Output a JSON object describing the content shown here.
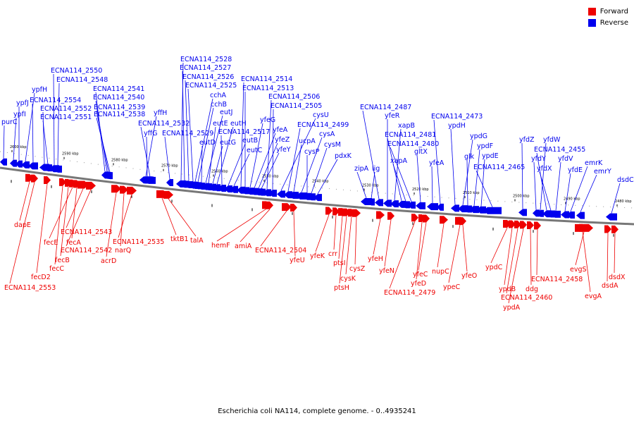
{
  "legend": {
    "forward_label": "Forward",
    "reverse_label": "Reverse",
    "forward_color": "#ee0000",
    "reverse_color": "#0000ee"
  },
  "caption": "Escherichia coli NA114, complete genome. - 0..4935241",
  "colors": {
    "forward": "#ee0000",
    "reverse": "#0000ee",
    "backbone": "#777777"
  },
  "ticks": [
    "2600 kbp",
    "2590 kbp",
    "2580 kbp",
    "2570 kbp",
    "2560 kbp",
    "2550 kbp",
    "2540 kbp",
    "2530 kbp",
    "2520 kbp",
    "2510 kbp",
    "2500 kbp",
    "2490 kbp",
    "2480 kbp"
  ],
  "reverse_genes": [
    "purC",
    "ypfI",
    "ypfJ",
    "ypfH",
    "ECNA114_2554",
    "ECNA114_2552",
    "ECNA114_2551",
    "ECNA114_2550",
    "ECNA114_2548",
    "ECNA114_2541",
    "ECNA114_2540",
    "ECNA114_2539",
    "ECNA114_2538",
    "yffH",
    "yffG",
    "ECNA114_2532",
    "ECNA114_2529",
    "ECNA114_2528",
    "ECNA114_2527",
    "ECNA114_2526",
    "ECNA114_2525",
    "cchA",
    "cchB",
    "eutD",
    "eutJ",
    "eutE",
    "eutG",
    "eutH",
    "ECNA114_2517",
    "eutB",
    "eutC",
    "ECNA114_2514",
    "ECNA114_2513",
    "yfeG",
    "yfeA",
    "yfeZ",
    "yfeY",
    "ECNA114_2506",
    "ECNA114_2505",
    "cysU",
    "ECNA114_2499",
    "ucpA",
    "cysA",
    "cysP",
    "cysM",
    "pdxK",
    "zipA",
    "lig",
    "ECNA114_2487",
    "yfeR",
    "xapB",
    "ECNA114_2481",
    "xapA",
    "ECNA114_2480",
    "gltX",
    "yfeA",
    "ECNA114_2473",
    "ypdH",
    "ypdG",
    "glk",
    "ypdF",
    "ypdE",
    "ECNA114_2465",
    "yfdZ",
    "yfdY",
    "yfdW",
    "ECNA114_2455",
    "yfdX",
    "yfdV",
    "yfdE",
    "emrK",
    "emrY",
    "dsdC"
  ],
  "forward_genes": [
    "dapE",
    "ECNA114_2553",
    "fecD2",
    "fecC",
    "fecB",
    "fecE",
    "fecA",
    "ECNA114_2543",
    "ECNA114_2542",
    "acrD",
    "narQ",
    "ECNA114_2535",
    "tktB1",
    "talA",
    "hemF",
    "amiA",
    "ECNA114_2504",
    "yfeU",
    "yfeK",
    "crr",
    "ptsI",
    "ptsH",
    "cysK",
    "cysZ",
    "yfeH",
    "yfeN",
    "ECNA114_2479",
    "yfeD",
    "yfeC",
    "nupC",
    "ypeC",
    "yfeO",
    "ypdC",
    "ypdB",
    "ECNA114_2460",
    "ypdA",
    "ddg",
    "ECNA114_2458",
    "evgS",
    "evgA",
    "dsdA",
    "dsdX"
  ]
}
